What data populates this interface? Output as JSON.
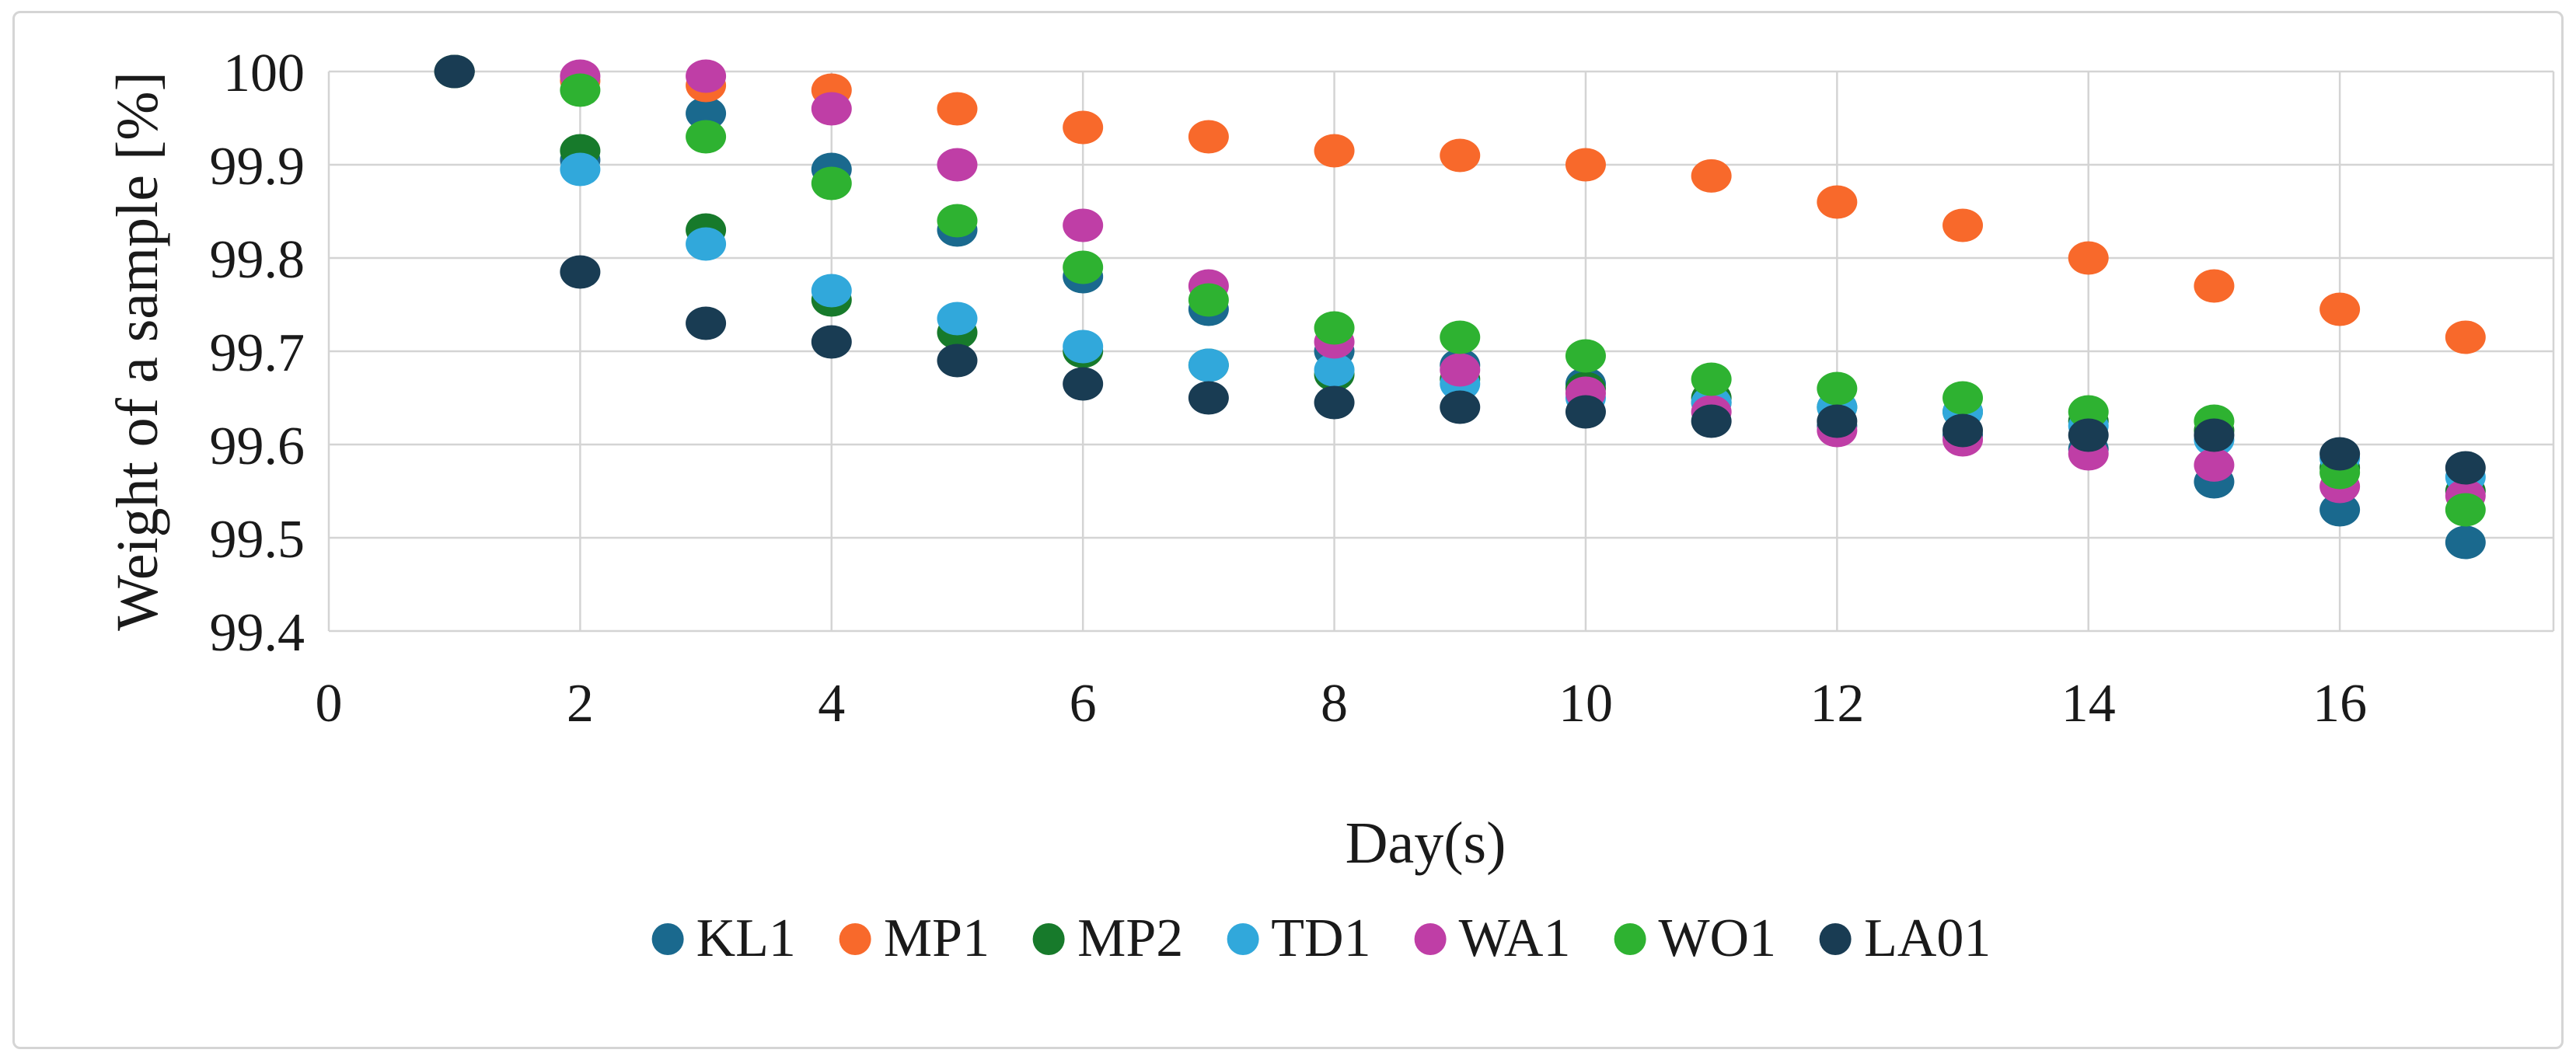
{
  "panel": {
    "background": "#ffffff",
    "border_color": "#d5d5d5"
  },
  "colors": {
    "gridline": "#d4d4d4",
    "axis_line": "#c9c9c9",
    "text": "#1a1a1a",
    "plot_background": "#ffffff"
  },
  "chart_data": {
    "type": "scatter",
    "title": "",
    "xlabel": "Day(s)",
    "ylabel": "Weight of a sample [%]",
    "xlim": [
      0,
      17.7
    ],
    "ylim": [
      99.4,
      100
    ],
    "grid": true,
    "legend_position": "bottom",
    "x_tick_values": [
      0,
      2,
      4,
      6,
      8,
      10,
      12,
      14,
      16
    ],
    "x_tick_labels": [
      "0",
      "2",
      "4",
      "6",
      "8",
      "10",
      "12",
      "14",
      "16"
    ],
    "y_tick_values": [
      100,
      99.9,
      99.8,
      99.7,
      99.6,
      99.5,
      99.4
    ],
    "y_tick_labels": [
      "100",
      "99.9",
      "99.8",
      "99.7",
      "99.6",
      "99.5",
      "99.4"
    ],
    "x": [
      1,
      2,
      3,
      4,
      5,
      6,
      7,
      8,
      9,
      10,
      11,
      12,
      13,
      14,
      15,
      16,
      17
    ],
    "series": [
      {
        "name": "KL1",
        "color": "#1a698e",
        "values": [
          100,
          99.905,
          99.955,
          99.895,
          99.83,
          99.78,
          99.745,
          99.7,
          99.685,
          99.665,
          99.645,
          99.62,
          99.61,
          99.595,
          99.56,
          99.53,
          99.495
        ]
      },
      {
        "name": "MP1",
        "color": "#f8692b",
        "values": [
          100,
          99.99,
          99.985,
          99.98,
          99.96,
          99.94,
          99.93,
          99.915,
          99.91,
          99.9,
          99.888,
          99.86,
          99.835,
          99.8,
          99.77,
          99.745,
          99.715
        ]
      },
      {
        "name": "MP2",
        "color": "#177a2b",
        "values": [
          100,
          99.915,
          99.83,
          99.755,
          99.72,
          99.7,
          99.685,
          99.675,
          99.67,
          99.66,
          99.65,
          99.64,
          99.635,
          99.625,
          99.615,
          99.575,
          99.55
        ]
      },
      {
        "name": "TD1",
        "color": "#31a8db",
        "values": [
          100,
          99.895,
          99.815,
          99.765,
          99.735,
          99.705,
          99.685,
          99.68,
          99.665,
          99.65,
          99.645,
          99.64,
          99.635,
          99.62,
          99.605,
          99.585,
          99.565
        ]
      },
      {
        "name": "WA1",
        "color": "#bf3ea6",
        "values": [
          100,
          99.995,
          99.995,
          99.96,
          99.9,
          99.835,
          99.77,
          99.71,
          99.68,
          99.655,
          99.635,
          99.615,
          99.605,
          99.59,
          99.578,
          99.555,
          99.545
        ]
      },
      {
        "name": "WO1",
        "color": "#2eb231",
        "values": [
          100,
          99.98,
          99.93,
          99.88,
          99.84,
          99.79,
          99.755,
          99.725,
          99.715,
          99.695,
          99.67,
          99.66,
          99.65,
          99.635,
          99.625,
          99.57,
          99.53
        ]
      },
      {
        "name": "LA01",
        "color": "#193c53",
        "values": [
          100,
          99.785,
          99.73,
          99.71,
          99.69,
          99.665,
          99.65,
          99.645,
          99.64,
          99.635,
          99.625,
          99.625,
          99.615,
          99.61,
          99.61,
          99.59,
          99.575
        ]
      }
    ]
  }
}
